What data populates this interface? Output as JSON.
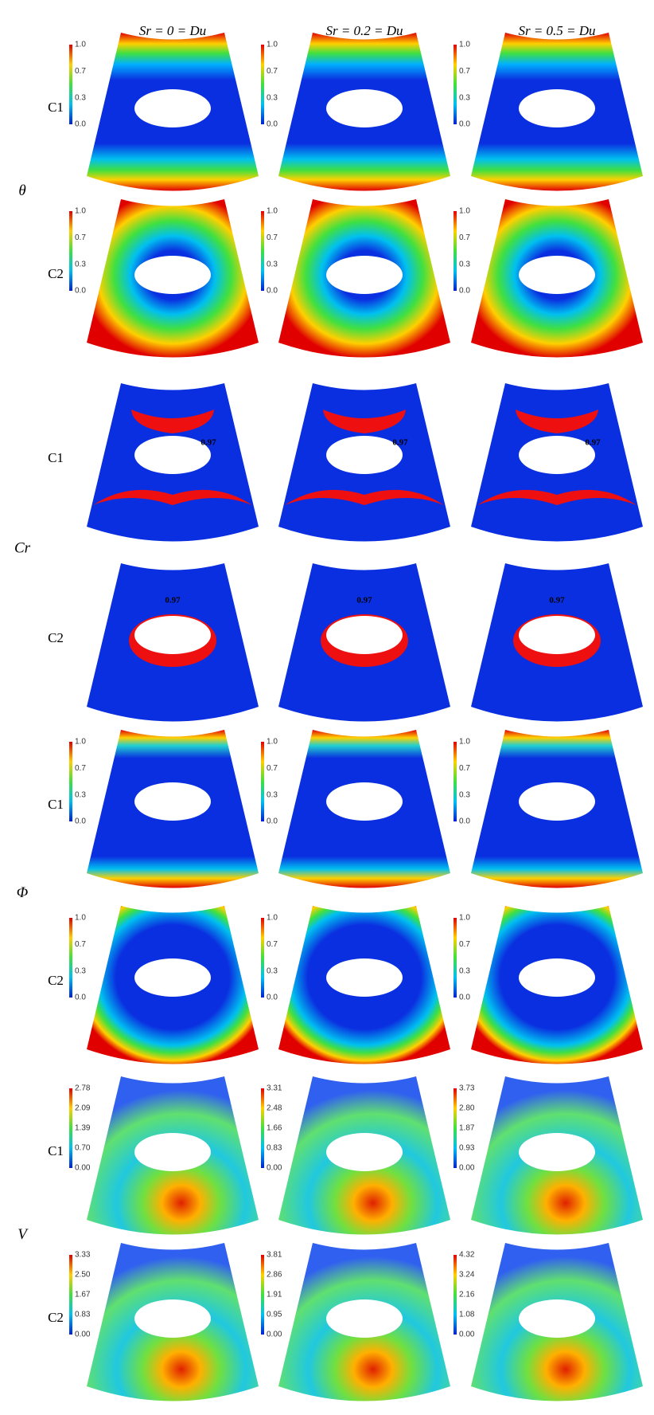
{
  "columns": [
    "Sr = 0 = Du",
    "Sr = 0.2 = Du",
    "Sr = 0.5 = Du"
  ],
  "groups": [
    {
      "symbol": "θ",
      "rows": [
        {
          "case": "C1",
          "panels": [
            {
              "colorbar": [
                "1.0",
                "0.7",
                "0.3",
                "0.0"
              ]
            },
            {
              "colorbar": [
                "1.0",
                "0.7",
                "0.3",
                "0.0"
              ]
            },
            {
              "colorbar": [
                "1.0",
                "0.7",
                "0.3",
                "0.0"
              ]
            }
          ]
        },
        {
          "case": "C2",
          "panels": [
            {
              "colorbar": [
                "1.0",
                "0.7",
                "0.3",
                "0.0"
              ]
            },
            {
              "colorbar": [
                "1.0",
                "0.7",
                "0.3",
                "0.0"
              ]
            },
            {
              "colorbar": [
                "1.0",
                "0.7",
                "0.3",
                "0.0"
              ]
            }
          ]
        }
      ]
    },
    {
      "symbol": "Cr",
      "rows": [
        {
          "case": "C1",
          "panels": [
            {
              "contour_label": "0.97"
            },
            {
              "contour_label": "0.97"
            },
            {
              "contour_label": "0.97"
            }
          ]
        },
        {
          "case": "C2",
          "panels": [
            {
              "contour_label": "0.97"
            },
            {
              "contour_label": "0.97"
            },
            {
              "contour_label": "0.97"
            }
          ]
        }
      ]
    },
    {
      "symbol": "Φ",
      "rows": [
        {
          "case": "C1",
          "panels": [
            {
              "colorbar": [
                "1.0",
                "0.7",
                "0.3",
                "0.0"
              ]
            },
            {
              "colorbar": [
                "1.0",
                "0.7",
                "0.3",
                "0.0"
              ]
            },
            {
              "colorbar": [
                "1.0",
                "0.7",
                "0.3",
                "0.0"
              ]
            }
          ]
        },
        {
          "case": "C2",
          "panels": [
            {
              "colorbar": [
                "1.0",
                "0.7",
                "0.3",
                "0.0"
              ]
            },
            {
              "colorbar": [
                "1.0",
                "0.7",
                "0.3",
                "0.0"
              ]
            },
            {
              "colorbar": [
                "1.0",
                "0.7",
                "0.3",
                "0.0"
              ]
            }
          ]
        }
      ]
    },
    {
      "symbol": "V",
      "rows": [
        {
          "case": "C1",
          "panels": [
            {
              "colorbar": [
                "2.78",
                "2.09",
                "1.39",
                "0.70",
                "0.00"
              ]
            },
            {
              "colorbar": [
                "3.31",
                "2.48",
                "1.66",
                "0.83",
                "0.00"
              ]
            },
            {
              "colorbar": [
                "3.73",
                "2.80",
                "1.87",
                "0.93",
                "0.00"
              ]
            }
          ]
        },
        {
          "case": "C2",
          "panels": [
            {
              "colorbar": [
                "3.33",
                "2.50",
                "1.67",
                "0.83",
                "0.00"
              ]
            },
            {
              "colorbar": [
                "3.81",
                "2.86",
                "1.91",
                "0.95",
                "0.00"
              ]
            },
            {
              "colorbar": [
                "4.32",
                "3.24",
                "2.16",
                "1.08",
                "0.00"
              ]
            }
          ]
        }
      ]
    }
  ]
}
